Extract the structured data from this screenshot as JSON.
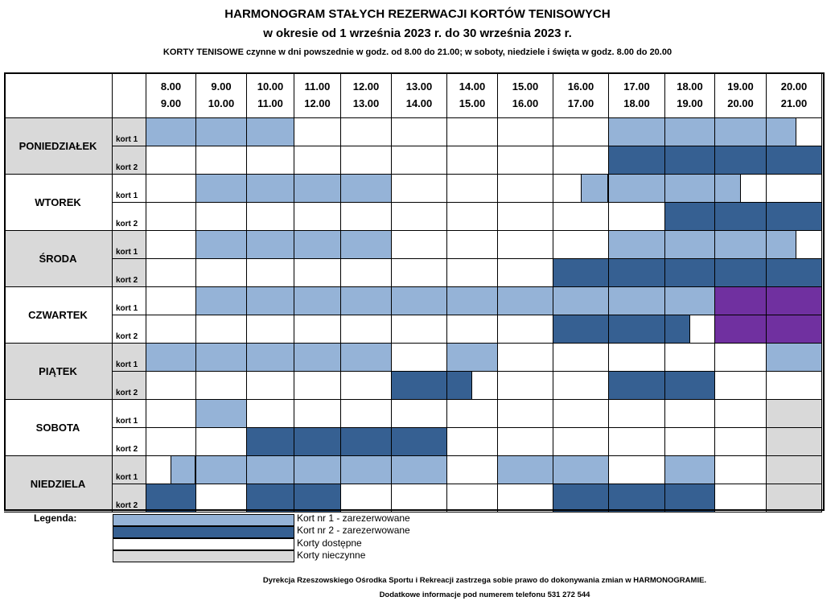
{
  "header": {
    "title": "HARMONOGRAM STAŁYCH REZERWACJI KORTÓW TENISOWYCH",
    "period": "w okresie od 1 września 2023 r.  do 30 września 2023 r.",
    "hours_info": "KORTY TENISOWE czynne w dni powszednie w godz.  od 8.00 do 21.00;  w soboty, niedziele i święta w godz. 8.00 do 20.00"
  },
  "time_slots": [
    {
      "from": "8.00",
      "to": "9.00"
    },
    {
      "from": "9.00",
      "to": "10.00"
    },
    {
      "from": "10.00",
      "to": "11.00"
    },
    {
      "from": "11.00",
      "to": "12.00"
    },
    {
      "from": "12.00",
      "to": "13.00"
    },
    {
      "from": "13.00",
      "to": "14.00"
    },
    {
      "from": "14.00",
      "to": "15.00"
    },
    {
      "from": "15.00",
      "to": "16.00"
    },
    {
      "from": "16.00",
      "to": "17.00"
    },
    {
      "from": "17.00",
      "to": "18.00"
    },
    {
      "from": "18.00",
      "to": "19.00"
    },
    {
      "from": "19.00",
      "to": "20.00"
    },
    {
      "from": "20.00",
      "to": "21.00"
    }
  ],
  "court_labels": [
    "kort 1",
    "kort 2"
  ],
  "colors": {
    "court1_reserved": "#95b3d7",
    "court2_reserved": "#366092",
    "special": "#7030a0",
    "available": "#ffffff",
    "closed": "#d9d9d9"
  },
  "days": [
    {
      "name": "PONIEDZIAŁEK",
      "shaded": true,
      "kort1": [
        "c1",
        "c1",
        "c1",
        "",
        "",
        "",
        "",
        "",
        "",
        "c1",
        "c1",
        "c1",
        "c1:0.55"
      ],
      "kort2": [
        "",
        "",
        "",
        "",
        "",
        "",
        "",
        "",
        "",
        "c2",
        "c2",
        "c2",
        "c2"
      ]
    },
    {
      "name": "WTOREK",
      "shaded": false,
      "kort1": [
        "",
        "c1",
        "c1",
        "c1",
        "c1",
        "",
        "",
        "",
        "c1:0.5r",
        "c1",
        "c1",
        "c1:0.5",
        ""
      ],
      "kort2": [
        "",
        "",
        "",
        "",
        "",
        "",
        "",
        "",
        "",
        "",
        "c2",
        "c2",
        "c2"
      ]
    },
    {
      "name": "ŚRODA",
      "shaded": true,
      "kort1": [
        "",
        "c1",
        "c1",
        "c1",
        "c1",
        "",
        "",
        "",
        "",
        "c1",
        "c1",
        "c1",
        "c1:0.55"
      ],
      "kort2": [
        "",
        "",
        "",
        "",
        "",
        "",
        "",
        "",
        "c2",
        "c2",
        "c2",
        "c2",
        "c2"
      ]
    },
    {
      "name": "CZWARTEK",
      "shaded": false,
      "kort1": [
        "",
        "c1",
        "c1",
        "c1",
        "c1",
        "c1",
        "c1",
        "c1",
        "c1",
        "c1",
        "c1",
        "x",
        "x"
      ],
      "kort2": [
        "",
        "",
        "",
        "",
        "",
        "",
        "",
        "",
        "c2",
        "c2",
        "c2:0.5",
        "x",
        "x"
      ]
    },
    {
      "name": "PIĄTEK",
      "shaded": true,
      "kort1": [
        "c1",
        "c1",
        "c1",
        "c1",
        "c1",
        "",
        "c1",
        "",
        "",
        "",
        "",
        "",
        "c1"
      ],
      "kort2": [
        "",
        "",
        "",
        "",
        "",
        "c2",
        "c2:0.5",
        "",
        "",
        "c2",
        "c2",
        "",
        ""
      ]
    },
    {
      "name": "SOBOTA",
      "shaded": false,
      "kort1": [
        "",
        "c1",
        "",
        "",
        "",
        "",
        "",
        "",
        "",
        "",
        "",
        "",
        "off"
      ],
      "kort2": [
        "",
        "",
        "c2",
        "c2",
        "c2",
        "c2",
        "",
        "",
        "",
        "",
        "",
        "",
        "off"
      ]
    },
    {
      "name": "NIEDZIELA",
      "shaded": true,
      "kort1": [
        "c1:0.5r",
        "c1",
        "c1",
        "c1",
        "c1",
        "c1",
        "",
        "c1",
        "c1",
        "",
        "c1",
        "",
        "off"
      ],
      "kort2": [
        "c2",
        "",
        "c2",
        "c2",
        "",
        "",
        "",
        "",
        "c2",
        "c2",
        "c2",
        "",
        "off"
      ]
    }
  ],
  "legend": {
    "label": "Legenda:",
    "items": [
      {
        "key": "c1",
        "text": "Kort nr 1 - zarezerwowane"
      },
      {
        "key": "c2",
        "text": "Kort nr 2 - zarezerwowane"
      },
      {
        "key": "free",
        "text": "Korty dostępne"
      },
      {
        "key": "off",
        "text": "Korty nieczynne"
      }
    ]
  },
  "footer": {
    "line1": "Dyrekcja Rzeszowskiego Ośrodka Sportu i Rekreacji zastrzega sobie prawo do dokonywania zmian w HARMONOGRAMIE.",
    "line2": "Dodatkowe informacje pod numerem telefonu  531 272 544"
  }
}
